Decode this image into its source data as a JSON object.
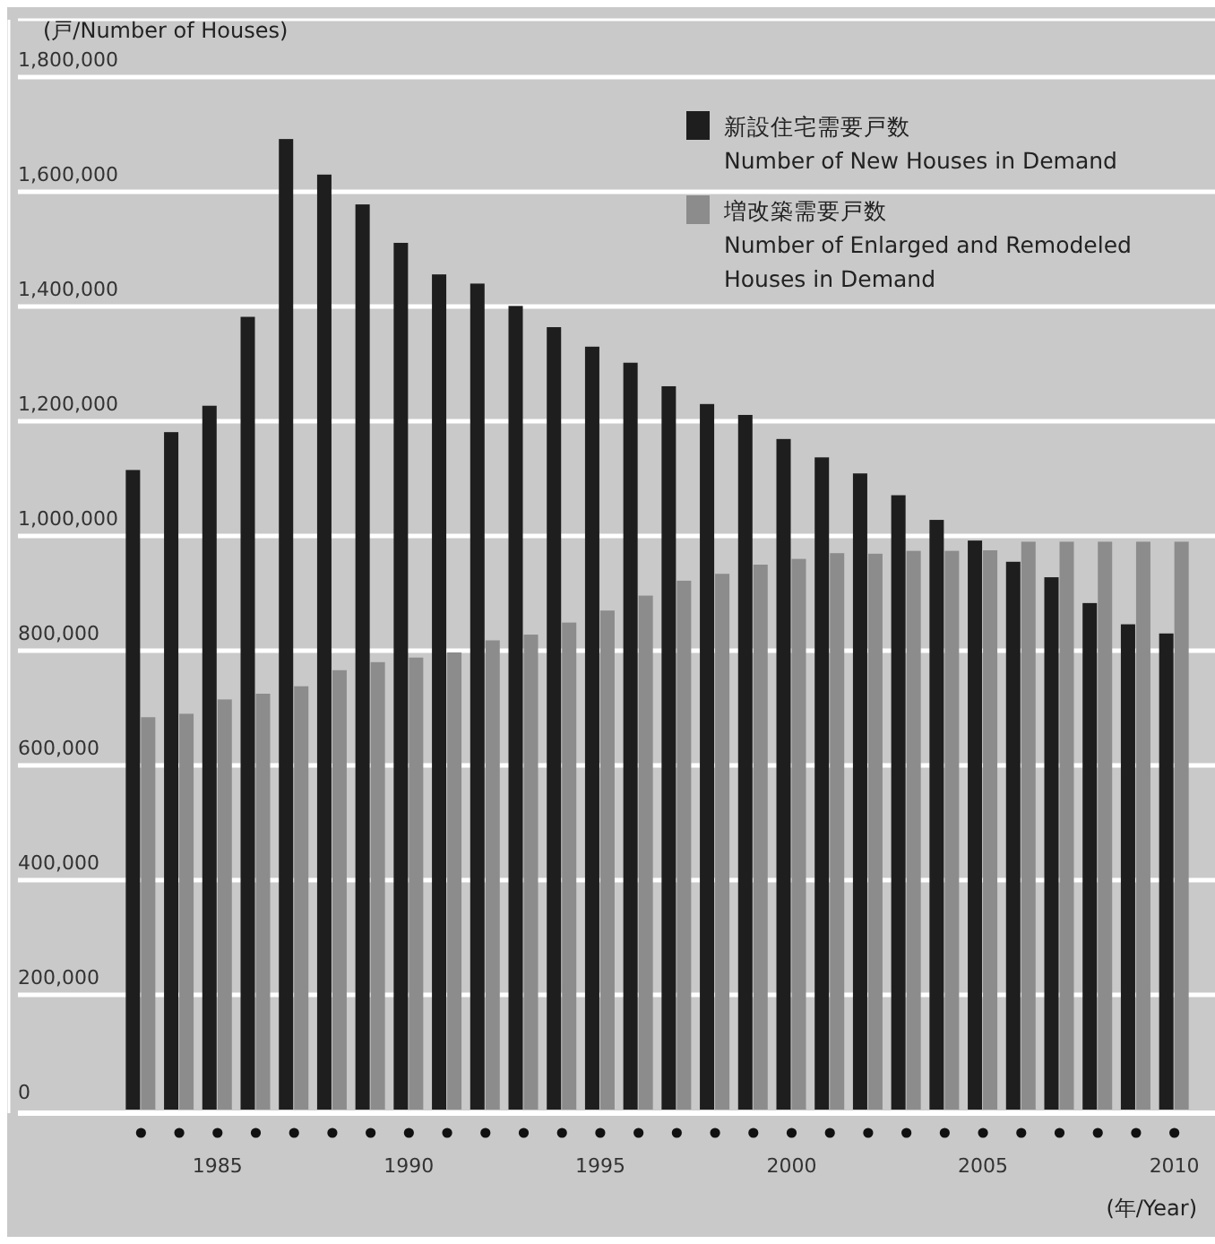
{
  "chart_data": {
    "type": "bar",
    "ylabel": "(戸/Number of Houses)",
    "xlabel": "(年/Year)",
    "categories": [
      null,
      null,
      "1985",
      null,
      null,
      null,
      null,
      "1990",
      null,
      null,
      null,
      null,
      "1995",
      null,
      null,
      null,
      null,
      "2000",
      null,
      null,
      null,
      null,
      "2005",
      null,
      null,
      null,
      null,
      "2010"
    ],
    "series": [
      {
        "name": "新設住宅需要戸数\nNumber of New Houses in Demand",
        "color": "#1e1e1e",
        "values": [
          1115000,
          1181000,
          1227000,
          1382000,
          1692000,
          1630000,
          1578000,
          1511000,
          1456000,
          1440000,
          1401000,
          1364000,
          1330000,
          1302000,
          1261000,
          1230000,
          1211000,
          1169000,
          1137000,
          1109000,
          1071000,
          1028000,
          992000,
          955000,
          928000,
          883000,
          846000,
          830000
        ]
      },
      {
        "name": "増改築需要戸数\nNumber of Enlarged and Remodeled\nHouses in Demand",
        "color": "#8c8c8c",
        "values": [
          684000,
          690000,
          715000,
          725000,
          738000,
          766000,
          780000,
          788000,
          797000,
          818000,
          828000,
          849000,
          870000,
          896000,
          922000,
          934000,
          950000,
          960000,
          970000,
          969000,
          974000,
          974000,
          975000,
          990000,
          990000,
          990000,
          990000,
          990000
        ]
      }
    ],
    "ylim": [
      0,
      1900000
    ],
    "yticks": [
      0,
      {
        "value": 200000,
        "label": "200,000"
      },
      {
        "value": 400000,
        "label": "400,000"
      },
      {
        "value": 600000,
        "label": "600,000"
      },
      {
        "value": 800000,
        "label": "800,000"
      },
      {
        "value": 1000000,
        "label": "1,000,000"
      },
      {
        "value": 1200000,
        "label": "1,200,000"
      },
      {
        "value": 1400000,
        "label": "1,400,000"
      },
      {
        "value": 1600000,
        "label": "1,600,000"
      },
      {
        "value": 1800000,
        "label": "1,800,000"
      }
    ],
    "grid": "y",
    "legend": "top right"
  }
}
